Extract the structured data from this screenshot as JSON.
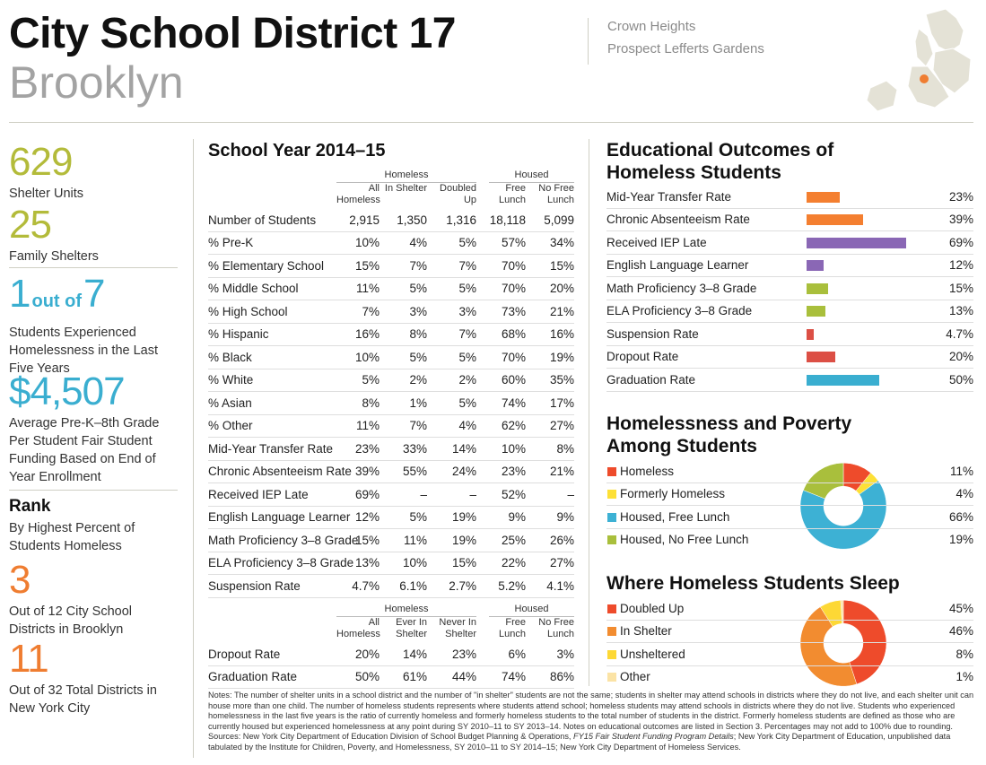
{
  "header": {
    "title": "City School District 17",
    "subtitle": "Brooklyn",
    "neighborhoods": [
      "Crown Heights",
      "Prospect Lefferts Gardens"
    ]
  },
  "stats": [
    {
      "value": "629",
      "label": "Shelter Units",
      "color": "#b3bb3a"
    },
    {
      "value": "25",
      "label": "Family Shelters",
      "color": "#b3bb3a"
    },
    {
      "parts": [
        "1",
        "out of",
        "7"
      ],
      "label": "Students Experienced Homelessness in the Last Five Years",
      "color": "#3aaed0"
    },
    {
      "value": "$4,507",
      "label": "Average Pre-K–8th Grade Per Student Fair Student Funding Based on End of Year Enrollment",
      "color": "#3aaed0"
    },
    {
      "heading": "Rank",
      "label": "By Highest Percent of Students Homeless"
    },
    {
      "value": "3",
      "label": "Out of 12 City School Districts in Brooklyn",
      "color": "#ef7d31"
    },
    {
      "value": "11",
      "label": "Out of 32 Total Districts in New York City",
      "color": "#ef7d31"
    }
  ],
  "table": {
    "title": "School Year 2014–15",
    "sections": [
      {
        "groups": [
          "Homeless",
          "Housed"
        ],
        "columns": [
          "All Homeless",
          "In Shelter",
          "Doubled Up",
          "Free Lunch",
          "No Free Lunch"
        ],
        "rows": [
          {
            "label": "Number of Students",
            "values": [
              "2,915",
              "1,350",
              "1,316",
              "18,118",
              "5,099"
            ]
          },
          {
            "label": "% Pre-K",
            "values": [
              "10%",
              "4%",
              "5%",
              "57%",
              "34%"
            ]
          },
          {
            "label": "% Elementary School",
            "values": [
              "15%",
              "7%",
              "7%",
              "70%",
              "15%"
            ]
          },
          {
            "label": "% Middle School",
            "values": [
              "11%",
              "5%",
              "5%",
              "70%",
              "20%"
            ]
          },
          {
            "label": "% High School",
            "values": [
              "7%",
              "3%",
              "3%",
              "73%",
              "21%"
            ]
          },
          {
            "label": "% Hispanic",
            "values": [
              "16%",
              "8%",
              "7%",
              "68%",
              "16%"
            ]
          },
          {
            "label": "% Black",
            "values": [
              "10%",
              "5%",
              "5%",
              "70%",
              "19%"
            ]
          },
          {
            "label": "% White",
            "values": [
              "5%",
              "2%",
              "2%",
              "60%",
              "35%"
            ]
          },
          {
            "label": "% Asian",
            "values": [
              "8%",
              "1%",
              "5%",
              "74%",
              "17%"
            ]
          },
          {
            "label": "% Other",
            "values": [
              "11%",
              "7%",
              "4%",
              "62%",
              "27%"
            ]
          },
          {
            "label": "Mid-Year Transfer Rate",
            "values": [
              "23%",
              "33%",
              "14%",
              "10%",
              "8%"
            ]
          },
          {
            "label": "Chronic Absenteeism Rate",
            "values": [
              "39%",
              "55%",
              "24%",
              "23%",
              "21%"
            ]
          },
          {
            "label": "Received IEP Late",
            "values": [
              "69%",
              "–",
              "–",
              "52%",
              "–"
            ]
          },
          {
            "label": "English Language Learner",
            "values": [
              "12%",
              "5%",
              "19%",
              "9%",
              "9%"
            ]
          },
          {
            "label": "Math Proficiency 3–8 Grade",
            "values": [
              "15%",
              "11%",
              "19%",
              "25%",
              "26%"
            ]
          },
          {
            "label": "ELA Proficiency 3–8 Grade",
            "values": [
              "13%",
              "10%",
              "15%",
              "22%",
              "27%"
            ]
          },
          {
            "label": "Suspension Rate",
            "values": [
              "4.7%",
              "6.1%",
              "2.7%",
              "5.2%",
              "4.1%"
            ]
          }
        ]
      },
      {
        "groups": [
          "Homeless",
          "Housed"
        ],
        "columns": [
          "All Homeless",
          "Ever In Shelter",
          "Never In Shelter",
          "Free Lunch",
          "No Free Lunch"
        ],
        "rows": [
          {
            "label": "Dropout Rate",
            "values": [
              "20%",
              "14%",
              "23%",
              "6%",
              "3%"
            ]
          },
          {
            "label": "Graduation Rate",
            "values": [
              "50%",
              "61%",
              "44%",
              "74%",
              "86%"
            ]
          }
        ]
      }
    ]
  },
  "outcomes": {
    "type": "bar",
    "title": "Educational Outcomes of Homeless Students",
    "categories": [
      "Mid-Year Transfer Rate",
      "Chronic Absenteeism Rate",
      "Received IEP Late",
      "English Language Learner",
      "Math Proficiency 3–8 Grade",
      "ELA Proficiency 3–8 Grade",
      "Suspension Rate",
      "Dropout Rate",
      "Graduation Rate"
    ],
    "values": [
      23,
      39,
      69,
      12,
      15,
      13,
      4.7,
      20,
      50
    ],
    "value_labels": [
      "23%",
      "39%",
      "69%",
      "12%",
      "15%",
      "13%",
      "4.7%",
      "20%",
      "50%"
    ],
    "colors": [
      "#f47f30",
      "#f47f30",
      "#8a67b5",
      "#8a67b5",
      "#a9bf3c",
      "#a9bf3c",
      "#dc4f45",
      "#dc4f45",
      "#3aaed0"
    ]
  },
  "poverty": {
    "type": "donut",
    "title": "Homelessness and Poverty Among Students",
    "categories": [
      "Homeless",
      "Formerly Homeless",
      "Housed, Free Lunch",
      "Housed, No Free Lunch"
    ],
    "values": [
      11,
      4,
      66,
      19
    ],
    "value_labels": [
      "11%",
      "4%",
      "66%",
      "19%"
    ],
    "colors": [
      "#ee4b2b",
      "#fde036",
      "#3db1d4",
      "#a9bf3c"
    ]
  },
  "sleep": {
    "type": "donut",
    "title": "Where Homeless Students Sleep",
    "categories": [
      "Doubled Up",
      "In Shelter",
      "Unsheltered",
      "Other"
    ],
    "values": [
      45,
      46,
      8,
      1
    ],
    "value_labels": [
      "45%",
      "46%",
      "8%",
      "1%"
    ],
    "colors": [
      "#ee4b2b",
      "#f28c30",
      "#fdd835",
      "#fbe3a5"
    ]
  },
  "notes": {
    "text": "Notes: The number of shelter units in a school district and the number of \"in shelter\" students are not the same; students in shelter may attend schools in districts where they do not live, and each shelter unit can house more than one child. The number of homeless students represents where students attend school; homeless students may attend schools in districts where they do not live. Students who experienced homelessness in the last five years is the ratio of currently homeless and formerly homeless students to the total number of students in the district. Formerly homeless students are defined as those who are currently housed but experienced homelessness at any point during SY 2010–11 to SY 2013–14. Notes on educational outcomes are listed in Section 3. Percentages may not add to 100% due to rounding.",
    "sources": [
      "Sources: New York City Department of Education Division of School Budget Planning & Operations, ",
      "FY15 Fair Student Funding Program Details",
      "; New York City Department of Education, unpublished data tabulated by the Institute for Children, Poverty, and Homelessness, SY 2010–11 to SY 2014–15; New York City Department of Homeless Services."
    ]
  }
}
